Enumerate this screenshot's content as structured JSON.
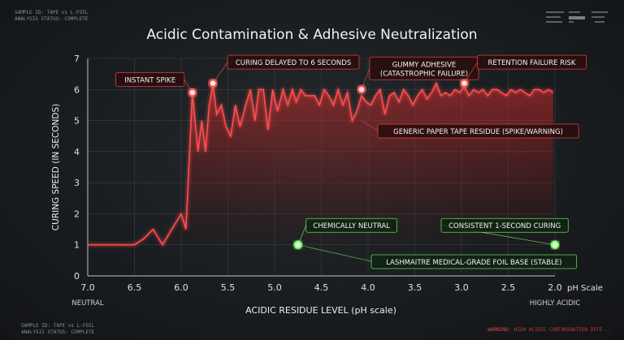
{
  "corners": {
    "top_left": [
      "SAMPLE ID: TAPE vs L-FOIL",
      "ANALYSIS STATUS: COMPLETE"
    ],
    "bottom_left": [
      "SAMPLE ID: TAPE vs L-FOIL",
      "ANALYSIS STATUS: COMPLETE"
    ],
    "bottom_right_prefix": "WARNING:",
    "bottom_right": "HIGH ACIDIC CONTAMINATION DETE..."
  },
  "colors": {
    "red": "#ff4d4d",
    "red_glow": "#ff2a2a",
    "green": "#7dff6a",
    "orange": "#f5a54a",
    "axis": "#d8d8d8"
  },
  "chart_data": {
    "type": "line",
    "title": "Acidic Contamination & Adhesive Neutralization",
    "xlabel": "ACIDIC RESIDUE LEVEL (pH scale)",
    "ylabel": "CURING SPEED (IN SECONDS)",
    "x_unit_label": "pH Scale",
    "x_left_label": "NEUTRAL",
    "x_right_label": "HIGHLY ACIDIC",
    "xlim": [
      7.0,
      2.0
    ],
    "ylim": [
      0,
      7
    ],
    "x_ticks": [
      "7.0",
      "6.5",
      "6.0",
      "5.5",
      "5.0",
      "4.5",
      "4.0",
      "3.5",
      "3.0",
      "2.5",
      "2.0"
    ],
    "y_ticks": [
      "0",
      "1",
      "2",
      "3",
      "4",
      "5",
      "6",
      "7"
    ],
    "grid": true,
    "series": [
      {
        "name": "GENERIC PAPER TAPE RESIDUE (SPIKE/WARNING)",
        "x": [
          7.0,
          6.5,
          6.4,
          6.3,
          6.2,
          6.1,
          6.0,
          5.95,
          5.88,
          5.82,
          5.78,
          5.74,
          5.7,
          5.66,
          5.62,
          5.57,
          5.52,
          5.47,
          5.42,
          5.37,
          5.31,
          5.26,
          5.21,
          5.17,
          5.12,
          5.07,
          5.02,
          4.97,
          4.91,
          4.86,
          4.81,
          4.77,
          4.72,
          4.67,
          4.62,
          4.57,
          4.52,
          4.47,
          4.42,
          4.37,
          4.32,
          4.27,
          4.22,
          4.17,
          4.12,
          4.07,
          4.02,
          3.97,
          3.92,
          3.87,
          3.82,
          3.77,
          3.72,
          3.67,
          3.62,
          3.57,
          3.52,
          3.47,
          3.42,
          3.37,
          3.32,
          3.27,
          3.22,
          3.17,
          3.12,
          3.07,
          3.02,
          2.97,
          2.92,
          2.87,
          2.82,
          2.77,
          2.72,
          2.67,
          2.62,
          2.57,
          2.52,
          2.47,
          2.42,
          2.37,
          2.32,
          2.27,
          2.22,
          2.17,
          2.12,
          2.07,
          2.02
        ],
        "values": [
          1.0,
          1.0,
          1.2,
          1.5,
          1.0,
          1.5,
          2.0,
          1.5,
          5.9,
          4.0,
          5.0,
          4.0,
          5.5,
          6.2,
          5.2,
          5.5,
          4.8,
          4.5,
          5.5,
          4.8,
          5.5,
          6.0,
          5.0,
          6.0,
          6.0,
          4.7,
          6.0,
          5.3,
          6.0,
          5.5,
          6.0,
          5.6,
          6.0,
          5.8,
          5.8,
          5.8,
          5.5,
          6.0,
          5.8,
          5.5,
          6.0,
          5.5,
          5.9,
          5.0,
          5.3,
          5.8,
          5.6,
          5.5,
          5.8,
          6.0,
          5.2,
          5.8,
          5.9,
          5.6,
          6.0,
          5.8,
          5.5,
          5.8,
          6.0,
          5.7,
          5.9,
          6.2,
          5.8,
          5.9,
          5.8,
          6.0,
          5.9,
          6.1,
          5.8,
          6.0,
          5.9,
          6.0,
          5.8,
          6.0,
          6.0,
          5.9,
          5.8,
          6.0,
          5.9,
          6.0,
          5.9,
          5.8,
          6.0,
          6.0,
          5.9,
          6.0,
          5.9
        ]
      },
      {
        "name": "LASHMAITRE MEDICAL-GRADE FOIL BASE (STABLE)",
        "x": [
          7.0,
          2.0
        ],
        "values": [
          1.0,
          1.0
        ]
      }
    ],
    "annotations": [
      {
        "text": "INSTANT SPIKE",
        "x": 5.88,
        "y": 5.9,
        "series": 0
      },
      {
        "text": "CURING DELAYED TO 6 SECONDS",
        "x": 5.66,
        "y": 6.2,
        "series": 0
      },
      {
        "text": "GUMMY ADHESIVE",
        "text2": "(CATASTROPHIC FAILURE)",
        "x": 4.07,
        "y": 6.0,
        "series": 0
      },
      {
        "text": "RETENTION FAILURE RISK",
        "x": 2.97,
        "y": 6.2,
        "series": 0
      },
      {
        "text": "CHEMICALLY NEUTRAL",
        "x": 4.75,
        "y": 1.0,
        "series": 1
      },
      {
        "text": "CONSISTENT 1-SECOND CURING",
        "x": 2.0,
        "y": 1.0,
        "series": 1
      }
    ]
  }
}
